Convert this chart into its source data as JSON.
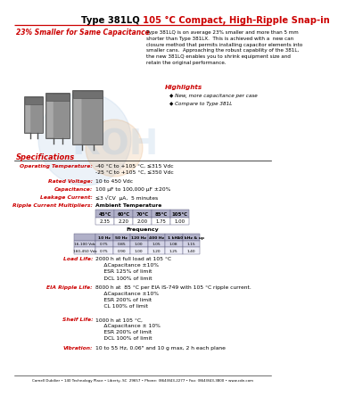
{
  "title_black": "Type 381LQ ",
  "title_red": "105 °C Compact, High-Ripple Snap-in",
  "subtitle": "23% Smaller for Same Capacitance",
  "body_text": "Type 381LQ is on average 23% smaller and more than 5 mm\nshorter than Type 381LX.  This is achieved with a  new can\nclosure method that permits installing capacitor elements into\nsmaller cans.  Approaching the robust capability of the 381L,\nthe new 381LQ enables you to shrink equipment size and\nretain the original performance.",
  "highlights_title": "Highlights",
  "highlights": [
    "◆ New, more capacitance per case",
    "◆ Compare to Type 381L"
  ],
  "spec_title": "Specifications",
  "specs": [
    [
      "Operating Temperature:",
      "-40 °C to +105 °C, ≤315 Vdc\n-25 °C to +105 °C, ≤350 Vdc"
    ],
    [
      "Rated Voltage:",
      "10 to 450 Vdc"
    ],
    [
      "Capacitance:",
      "100 µF to 100,000 µF ±20%"
    ],
    [
      "Leakage Current:",
      "≤3 √CV  µA,  5 minutes"
    ],
    [
      "Ripple Current Multipliers:",
      "Ambient Temperature"
    ]
  ],
  "ambient_headers": [
    "45°C",
    "60°C",
    "70°C",
    "85°C",
    "105°C"
  ],
  "ambient_values": [
    "2.35",
    "2.20",
    "2.00",
    "1.75",
    "1.00"
  ],
  "freq_label": "Frequency",
  "freq_headers": [
    "10 Hz",
    "50 Hz",
    "120 Hz",
    "400 Hz",
    "1 kHz",
    "10 kHz & up"
  ],
  "freq_row1_label": "16-100 Vdc",
  "freq_row1": [
    "0.75",
    "0.85",
    "1.00",
    "1.05",
    "1.08",
    "1.15"
  ],
  "freq_row2_label": "160-450 Vdc",
  "freq_row2": [
    "0.75",
    "0.90",
    "1.00",
    "1.20",
    "1.25",
    "1.40"
  ],
  "load_life_label": "Load Life:",
  "load_life_text": "2000 h at full load at 105 °C\n     ΔCapacitance ±10%\n     ESR 125% of limit\n     DCL 100% of limit",
  "eia_label": "EIA Ripple Life:",
  "eia_text": "8000 h at  85 °C per EIA IS-749 with 105 °C ripple current.\n     ΔCapacitance ±10%\n     ESR 200% of limit\n     CL 100% of limit",
  "shelf_label": "Shelf Life:",
  "shelf_text": "1000 h at 105 °C,\n     ΔCapacitance ± 10%\n     ESR 200% of limit\n     DCL 100% of limit",
  "vibration_label": "Vibration:",
  "vibration_text": "10 to 55 Hz, 0.06\" and 10 g max, 2 h each plane",
  "footer": "Cornell Dubilier • 140 Technology Place • Liberty, SC  29657 • Phone: (864)843-2277 • Fax: (864)843-3800 • www.cde.com",
  "red_color": "#cc0000",
  "orange_color": "#dd6600"
}
